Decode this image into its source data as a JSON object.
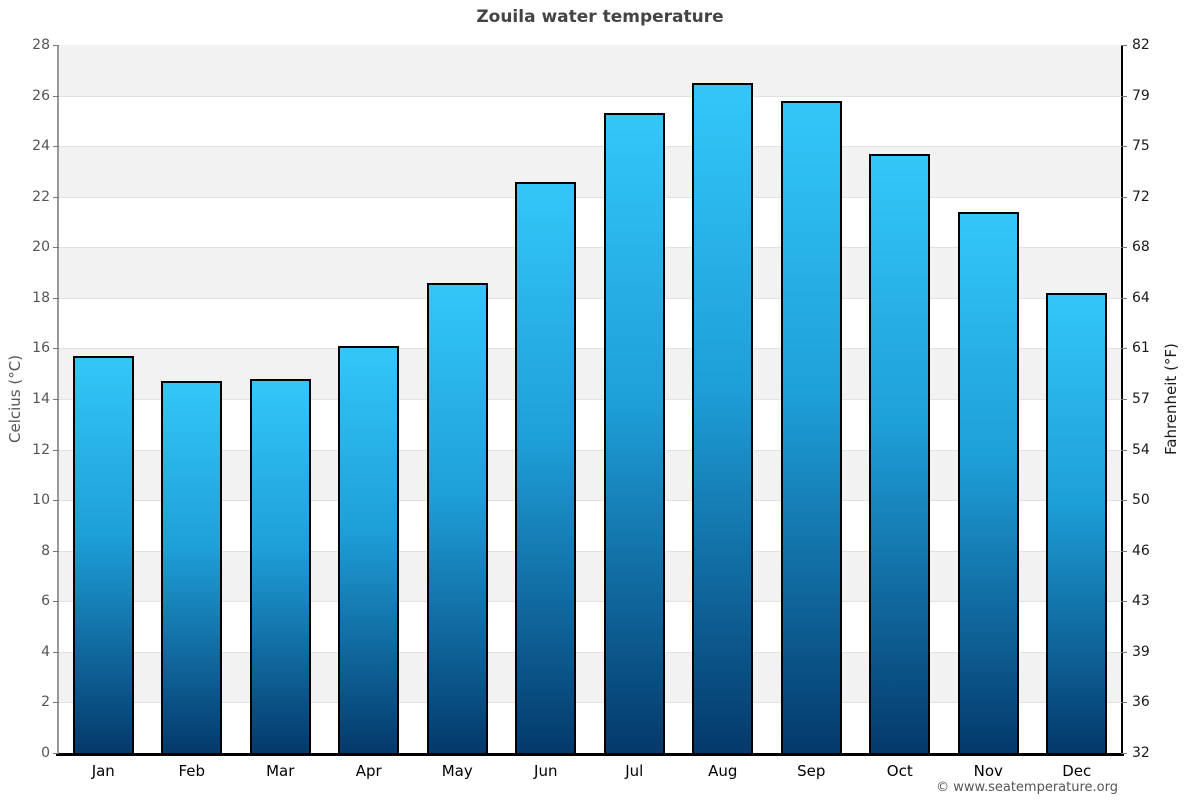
{
  "chart_data": {
    "type": "bar",
    "title": "Zouila water temperature",
    "categories": [
      "Jan",
      "Feb",
      "Mar",
      "Apr",
      "May",
      "Jun",
      "Jul",
      "Aug",
      "Sep",
      "Oct",
      "Nov",
      "Dec"
    ],
    "values": [
      15.7,
      14.7,
      14.8,
      16.1,
      18.6,
      22.6,
      25.3,
      26.5,
      25.8,
      23.7,
      21.4,
      18.2
    ],
    "ylabel_left": "Celcius (°C)",
    "ylabel_right": "Fahrenheit (°F)",
    "ylim_celsius": [
      0,
      28
    ],
    "yticks_celsius": [
      28,
      26,
      24,
      22,
      20,
      18,
      16,
      14,
      12,
      10,
      8,
      6,
      4,
      2,
      0
    ],
    "yticks_fahrenheit": [
      82,
      79,
      75,
      72,
      68,
      64,
      61,
      57,
      54,
      50,
      46,
      43,
      39,
      36,
      32
    ],
    "grid": "horizontal alternating bands",
    "legend": "none",
    "colors": {
      "bar_gradient_top": "#33c7f8",
      "bar_gradient_bottom": "#04396b",
      "bar_border": "#000000",
      "band_shade": "#f2f2f2",
      "band_light": "#ffffff",
      "grid_line": "#e2e2e2",
      "title_text": "#444444",
      "tick_text_left": "#555555",
      "tick_text_right": "#1a1a1a"
    }
  },
  "footer": {
    "credit": "© www.seatemperature.org"
  }
}
